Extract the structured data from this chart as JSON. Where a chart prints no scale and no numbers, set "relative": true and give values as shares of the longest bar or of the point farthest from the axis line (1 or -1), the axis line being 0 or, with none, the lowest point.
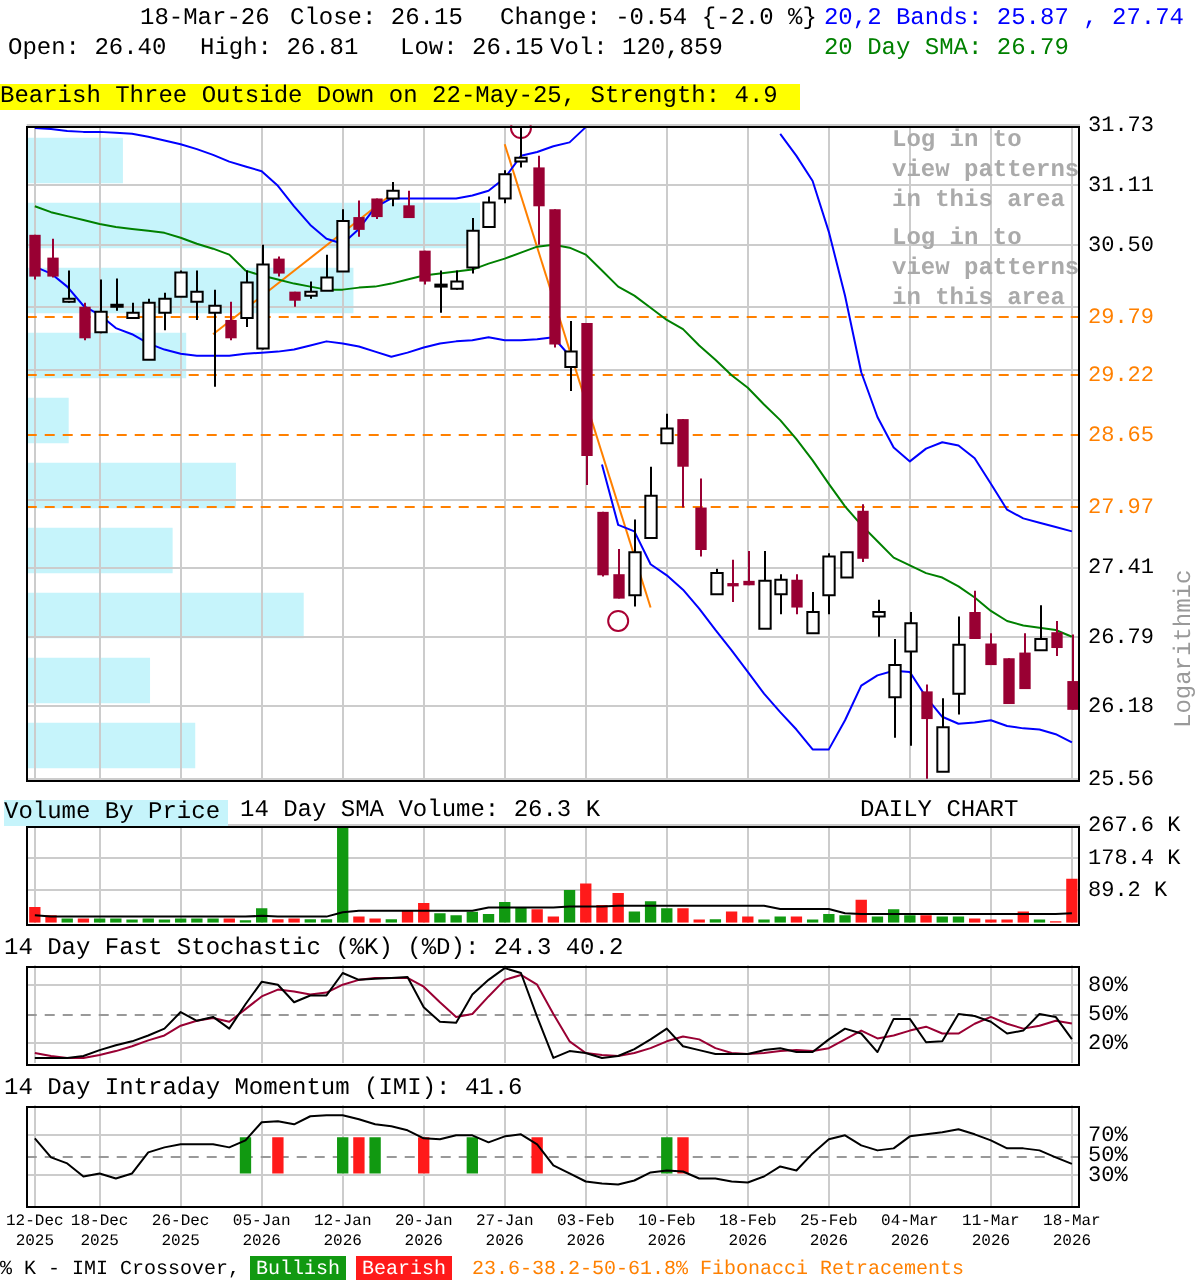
{
  "chart_data": [
    {
      "type": "candlestick",
      "title": "Bearish Three Outside Down on 22-May-25, Strength: 4.9",
      "ylabel": "Logarithmic",
      "annotations": [
        "18-Mar-26",
        "Close: 26.15",
        "Change: -0.54 {-2.0 %}",
        "Open: 26.40",
        "High: 26.81",
        "Low: 26.15",
        "Vol: 120,859",
        "DAILY CHART",
        "Log in to view patterns in this area",
        "Log in to view patterns in this area",
        "23.6-38.2-50-61.8% Fibonacci Retracements"
      ],
      "categories": [
        null,
        null,
        null,
        null,
        null,
        null,
        null,
        null,
        null,
        null,
        null,
        null,
        null,
        null,
        null,
        null,
        null,
        null,
        null,
        null,
        null,
        null,
        null,
        null,
        null,
        null,
        null,
        null,
        null,
        null,
        null,
        null,
        null,
        null,
        null,
        null,
        null,
        null,
        null,
        null,
        null,
        null,
        null,
        null,
        null,
        null,
        null,
        null,
        null,
        null,
        null,
        null,
        null,
        null,
        null,
        null,
        null,
        null,
        null,
        null,
        null,
        null,
        null,
        null,
        null
      ],
      "ohlc": [
        [
          30.6,
          30.6,
          30.15,
          30.18
        ],
        [
          30.37,
          30.56,
          30.17,
          30.18
        ],
        [
          29.93,
          30.24,
          29.92,
          29.96
        ],
        [
          29.88,
          29.92,
          29.55,
          29.57
        ],
        [
          29.63,
          30.15,
          29.62,
          29.83
        ],
        [
          29.9,
          30.16,
          29.84,
          29.9
        ],
        [
          29.77,
          29.92,
          29.77,
          29.82
        ],
        [
          29.36,
          29.96,
          29.36,
          29.92
        ],
        [
          29.82,
          30.02,
          29.65,
          29.96
        ],
        [
          29.98,
          30.24,
          29.98,
          30.22
        ],
        [
          29.93,
          30.24,
          29.75,
          30.03
        ],
        [
          29.82,
          30.05,
          29.1,
          29.89
        ],
        [
          29.75,
          29.93,
          29.55,
          29.57
        ],
        [
          29.77,
          30.24,
          29.68,
          30.12
        ],
        [
          29.47,
          30.5,
          29.46,
          30.3
        ],
        [
          30.36,
          30.38,
          30.18,
          30.21
        ],
        [
          30.03,
          30.03,
          29.88,
          29.94
        ],
        [
          29.99,
          30.13,
          29.96,
          30.03
        ],
        [
          30.04,
          30.4,
          30.04,
          30.17
        ],
        [
          30.23,
          30.86,
          30.23,
          30.74
        ],
        [
          30.78,
          30.95,
          30.58,
          30.65
        ],
        [
          30.97,
          30.97,
          30.76,
          30.78
        ],
        [
          30.97,
          31.14,
          30.89,
          31.05
        ],
        [
          30.9,
          31.05,
          30.77,
          30.77
        ],
        [
          30.44,
          30.44,
          30.1,
          30.13
        ],
        [
          30.1,
          30.24,
          29.82,
          30.1
        ],
        [
          30.06,
          30.24,
          30.05,
          30.13
        ],
        [
          30.27,
          30.77,
          30.21,
          30.64
        ],
        [
          30.68,
          30.99,
          30.68,
          30.93
        ],
        [
          30.97,
          31.26,
          30.92,
          31.22
        ],
        [
          31.35,
          31.7,
          31.29,
          31.39
        ],
        [
          31.29,
          31.41,
          30.5,
          30.89
        ],
        [
          30.86,
          30.86,
          29.48,
          29.51
        ],
        [
          29.29,
          29.74,
          29.06,
          29.44
        ],
        [
          29.72,
          29.72,
          28.17,
          28.44
        ],
        [
          27.92,
          27.92,
          27.33,
          27.34
        ],
        [
          27.35,
          27.58,
          27.13,
          27.13
        ],
        [
          27.16,
          27.85,
          27.06,
          27.55
        ],
        [
          27.68,
          28.34,
          27.68,
          28.07
        ],
        [
          28.56,
          28.84,
          28.56,
          28.7
        ],
        [
          28.79,
          28.79,
          27.96,
          28.34
        ],
        [
          27.96,
          28.23,
          27.51,
          27.57
        ],
        [
          27.17,
          27.4,
          27.17,
          27.36
        ],
        [
          27.27,
          27.48,
          27.1,
          27.24
        ],
        [
          27.29,
          27.56,
          27.25,
          27.25
        ],
        [
          26.86,
          27.56,
          26.86,
          27.29
        ],
        [
          27.17,
          27.35,
          26.99,
          27.3
        ],
        [
          27.3,
          27.35,
          26.99,
          27.05
        ],
        [
          26.82,
          27.19,
          26.82,
          27.01
        ],
        [
          27.16,
          27.54,
          26.99,
          27.51
        ],
        [
          27.32,
          27.55,
          27.32,
          27.55
        ],
        [
          27.93,
          27.99,
          27.46,
          27.49
        ],
        [
          26.97,
          27.12,
          26.79,
          27.01
        ],
        [
          26.26,
          26.77,
          25.91,
          26.54
        ],
        [
          26.66,
          27.01,
          25.84,
          26.91
        ],
        [
          26.31,
          26.37,
          25.56,
          26.07
        ],
        [
          25.62,
          26.25,
          25.62,
          26.0
        ],
        [
          26.29,
          26.97,
          26.11,
          26.72
        ],
        [
          27.01,
          27.2,
          26.77,
          26.77
        ],
        [
          26.73,
          26.82,
          26.54,
          26.54
        ],
        [
          26.6,
          26.6,
          26.2,
          26.2
        ],
        [
          26.65,
          26.82,
          26.33,
          26.33
        ],
        [
          26.67,
          27.07,
          26.67,
          26.77
        ],
        [
          26.83,
          26.93,
          26.62,
          26.69
        ],
        [
          26.4,
          26.81,
          26.15,
          26.15
        ]
      ],
      "colors": [
        "#990033",
        "#990033",
        "#ffffff",
        "#990033",
        "#ffffff",
        "#ffffff",
        "#ffffff",
        "#ffffff",
        "#ffffff",
        "#ffffff",
        "#ffffff",
        "#ffffff",
        "#990033",
        "#ffffff",
        "#ffffff",
        "#990033",
        "#990033",
        "#ffffff",
        "#ffffff",
        "#ffffff",
        "#990033",
        "#990033",
        "#ffffff",
        "#990033",
        "#990033",
        "#ffffff",
        "#ffffff",
        "#ffffff",
        "#ffffff",
        "#ffffff",
        "#ffffff",
        "#990033",
        "#990033",
        "#ffffff",
        "#990033",
        "#990033",
        "#990033",
        "#ffffff",
        "#ffffff",
        "#ffffff",
        "#990033",
        "#990033",
        "#ffffff",
        "#990033",
        "#990033",
        "#ffffff",
        "#ffffff",
        "#990033",
        "#ffffff",
        "#ffffff",
        "#ffffff",
        "#990033",
        "#ffffff",
        "#ffffff",
        "#ffffff",
        "#990033",
        "#ffffff",
        "#ffffff",
        "#990033",
        "#990033",
        "#990033",
        "#990033",
        "#ffffff",
        "#990033",
        "#990033"
      ],
      "series": [
        {
          "type": "line",
          "name": "20,2 Bands: 25.87 , 27.74",
          "color": "#0000ff",
          "values": [
            31.7,
            31.69,
            31.67,
            31.66,
            31.66,
            31.65,
            31.64,
            31.61,
            31.57,
            31.53,
            31.48,
            31.42,
            31.35,
            31.3,
            31.25,
            31.1,
            30.89,
            30.7,
            30.56,
            30.51,
            30.66,
            30.88,
            30.97,
            30.97,
            30.97,
            30.97,
            30.97,
            31.0,
            31.05,
            31.18,
            31.41,
            31.45,
            31.51,
            31.55,
            31.71,
            null,
            null,
            null,
            null,
            null,
            null,
            null,
            null,
            null,
            null,
            null,
            31.64,
            31.41,
            31.15,
            30.63,
            29.99,
            29.24,
            28.81,
            28.52,
            28.39,
            28.51,
            28.57,
            28.54,
            28.42,
            28.18,
            27.94,
            27.86,
            27.82,
            27.78,
            27.74
          ]
        },
        {
          "type": "line",
          "color": "#0000ff",
          "values": [
            30.28,
            30.21,
            30.08,
            29.89,
            29.8,
            29.67,
            29.61,
            29.52,
            29.46,
            29.42,
            29.4,
            29.4,
            29.4,
            29.42,
            29.43,
            29.44,
            29.46,
            29.5,
            29.54,
            29.52,
            29.49,
            29.44,
            29.39,
            29.43,
            29.48,
            29.52,
            29.54,
            29.55,
            29.58,
            29.55,
            29.55,
            29.56,
            29.58,
            29.4,
            null,
            28.36,
            27.8,
            27.74,
            27.44,
            27.34,
            27.21,
            27.04,
            26.85,
            26.67,
            26.48,
            26.29,
            26.13,
            25.98,
            25.81,
            25.81,
            26.06,
            26.36,
            26.45,
            26.49,
            26.48,
            26.26,
            26.09,
            26.03,
            26.04,
            26.06,
            26.01,
            25.99,
            25.98,
            25.94,
            25.87
          ]
        },
        {
          "type": "line",
          "name": "20 Day SMA: 26.79",
          "color": "#008000",
          "values": [
            30.89,
            30.83,
            30.79,
            30.75,
            30.71,
            30.68,
            30.66,
            30.64,
            30.62,
            30.57,
            30.51,
            30.46,
            30.4,
            30.24,
            30.19,
            30.15,
            30.11,
            30.08,
            30.05,
            30.05,
            30.07,
            30.08,
            30.11,
            30.15,
            30.19,
            30.21,
            30.23,
            30.25,
            30.31,
            30.36,
            30.42,
            30.48,
            30.5,
            30.47,
            30.4,
            30.24,
            30.08,
            29.99,
            29.87,
            29.75,
            29.66,
            29.5,
            29.36,
            29.21,
            29.09,
            28.93,
            28.78,
            28.6,
            28.4,
            28.18,
            27.97,
            27.8,
            27.65,
            27.5,
            27.43,
            27.36,
            27.32,
            27.24,
            27.14,
            27.02,
            26.93,
            26.89,
            26.87,
            26.85,
            26.79
          ]
        },
        {
          "type": "line",
          "color": "#ff8000",
          "values": [
            null,
            null,
            null,
            null,
            null,
            null,
            null,
            null,
            null,
            null,
            null,
            29.61,
            null,
            null,
            null,
            null,
            null,
            null,
            null,
            null,
            null,
            null,
            31.01,
            null,
            null,
            null,
            null,
            null,
            null,
            null,
            null,
            null,
            null,
            null,
            null,
            null,
            null,
            null,
            null,
            null,
            null,
            null,
            null,
            null,
            null,
            null,
            null,
            null,
            null,
            null,
            null,
            null,
            null,
            null,
            null,
            null,
            null,
            null,
            null,
            null,
            null,
            null,
            null,
            null,
            null
          ]
        },
        {
          "type": "line",
          "color": "#ff8000",
          "values": [
            null,
            null,
            null,
            null,
            null,
            null,
            null,
            null,
            null,
            null,
            null,
            null,
            null,
            null,
            null,
            null,
            null,
            null,
            null,
            null,
            null,
            null,
            null,
            null,
            null,
            null,
            null,
            null,
            null,
            31.53,
            null,
            null,
            null,
            null,
            null,
            null,
            null,
            null,
            27.05,
            null,
            null,
            null,
            null,
            null,
            null,
            null,
            null,
            null,
            null,
            null,
            null,
            null,
            null,
            null,
            null,
            null,
            null,
            null,
            null,
            null,
            null,
            null,
            null,
            null,
            null
          ]
        },
        {
          "type": "scatter",
          "marker": "circle",
          "color": "#aa0033",
          "values": [
            null,
            null,
            null,
            null,
            null,
            null,
            null,
            null,
            null,
            null,
            null,
            null,
            null,
            null,
            null,
            null,
            null,
            null,
            null,
            null,
            null,
            null,
            null,
            null,
            null,
            null,
            null,
            null,
            null,
            null,
            31.7,
            null,
            null,
            null,
            null,
            null,
            26.93,
            null,
            null,
            null,
            null,
            null,
            null,
            null,
            null,
            null,
            null,
            null,
            null,
            null,
            null,
            null,
            null,
            null,
            null,
            null,
            null,
            null,
            null,
            null,
            null,
            null,
            null,
            null,
            null
          ]
        }
      ],
      "log": true,
      "ylim": [
        25.56,
        31.73
      ],
      "yticks": [
        25.56,
        26.18,
        26.79,
        27.41,
        {
          "value": 28.03,
          "label": null
        },
        {
          "value": 28.65,
          "label": null
        },
        {
          "value": 29.26,
          "label": null
        },
        {
          "value": 29.88,
          "label": null
        },
        {
          "value": 30.5,
          "label": "30.50"
        },
        31.11,
        31.73
      ],
      "ref_lines": [
        {
          "axis": "y",
          "value": 29.79,
          "label": "29.79",
          "color": "#ff8000",
          "line_style": "dashed"
        },
        {
          "axis": "y",
          "value": 29.22,
          "label": "29.22",
          "color": "#ff8000",
          "line_style": "dashed"
        },
        {
          "axis": "y",
          "value": 28.65,
          "label": "28.65",
          "color": "#ff8000",
          "line_style": "dashed"
        },
        {
          "axis": "y",
          "value": 27.97,
          "label": "27.97",
          "color": "#ff8000",
          "line_style": "dashed"
        }
      ],
      "grid": true,
      "legend": "top right",
      "tick_labels": "y"
    },
    {
      "type": "bar",
      "title": "Volume By Price",
      "orientation": "horizontal",
      "relative": true,
      "color": "#c6f4fb",
      "categories": [
        null,
        null,
        null,
        null,
        null,
        null,
        null,
        null,
        null,
        null
      ],
      "values": [
        0.21,
        1,
        0.72,
        0.35,
        0.09,
        0.46,
        0.32,
        0.61,
        0.27,
        0.37
      ]
    },
    {
      "type": "bar",
      "title": "14 Day SMA Volume: 26.3 K",
      "categories": [
        null,
        null,
        null,
        null,
        null,
        null,
        null,
        null,
        null,
        null,
        null,
        null,
        null,
        null,
        null,
        null,
        null,
        null,
        null,
        null,
        null,
        null,
        null,
        null,
        null,
        null,
        null,
        null,
        null,
        null,
        null,
        null,
        null,
        null,
        null,
        null,
        null,
        null,
        null,
        null,
        null,
        null,
        null,
        null,
        null,
        null,
        null,
        null,
        null,
        null,
        null,
        null,
        null,
        null,
        null,
        null,
        null,
        null,
        null,
        null,
        null,
        null,
        null,
        null,
        null
      ],
      "series": [
        {
          "type": "bar",
          "values": [
            43,
            21,
            12,
            12,
            12,
            12,
            9,
            12,
            9,
            12,
            12,
            12,
            12,
            7,
            40,
            10,
            12,
            10,
            10,
            265,
            17,
            12,
            10,
            35,
            54,
            26,
            21,
            30,
            24,
            57,
            42,
            37,
            17,
            90,
            108,
            49,
            82,
            31,
            59,
            40,
            40,
            9,
            10,
            31,
            17,
            9,
            17,
            17,
            9,
            24,
            21,
            63,
            17,
            37,
            21,
            21,
            17,
            17,
            12,
            9,
            9,
            31,
            9,
            4,
            121
          ],
          "colors": [
            "#ff1a1a",
            "#ff1a1a",
            "#119911",
            "#ff1a1a",
            "#119911",
            "#119911",
            "#119911",
            "#119911",
            "#119911",
            "#119911",
            "#119911",
            "#119911",
            "#ff1a1a",
            "#119911",
            "#119911",
            "#ff1a1a",
            "#ff1a1a",
            "#119911",
            "#119911",
            "#119911",
            "#ff1a1a",
            "#ff1a1a",
            "#119911",
            "#ff1a1a",
            "#ff1a1a",
            "#119911",
            "#119911",
            "#119911",
            "#119911",
            "#119911",
            "#119911",
            "#ff1a1a",
            "#ff1a1a",
            "#119911",
            "#ff1a1a",
            "#ff1a1a",
            "#ff1a1a",
            "#119911",
            "#119911",
            "#119911",
            "#ff1a1a",
            "#ff1a1a",
            "#119911",
            "#ff1a1a",
            "#ff1a1a",
            "#119911",
            "#119911",
            "#ff1a1a",
            "#119911",
            "#119911",
            "#119911",
            "#ff1a1a",
            "#119911",
            "#119911",
            "#119911",
            "#ff1a1a",
            "#119911",
            "#119911",
            "#ff1a1a",
            "#ff1a1a",
            "#ff1a1a",
            "#ff1a1a",
            "#119911",
            "#ff1a1a",
            "#ff1a1a"
          ]
        },
        {
          "type": "line",
          "color": "#000000",
          "values": [
            21,
            17,
            17,
            17,
            17,
            17,
            17,
            17,
            17,
            17,
            17,
            17,
            17,
            17,
            19,
            17,
            17,
            17,
            17,
            29,
            33,
            33,
            33,
            33,
            33,
            33,
            33,
            33,
            42,
            42,
            42,
            42,
            42,
            45,
            45,
            45,
            47,
            47,
            47,
            47,
            47,
            47,
            47,
            47,
            47,
            47,
            38,
            38,
            38,
            38,
            26,
            24,
            24,
            24,
            24,
            24,
            24,
            24,
            24,
            24,
            24,
            24,
            24,
            24,
            26
          ]
        }
      ],
      "ylim": [
        0,
        267.6
      ],
      "yticks": [
        {
          "value": 89.2,
          "label": "89.2 K"
        },
        {
          "value": 178.4,
          "label": "178.4 K"
        },
        {
          "value": 267.6,
          "label": "267.6 K"
        }
      ],
      "grid": true,
      "tick_labels": "y"
    },
    {
      "type": "line",
      "title": "14 Day Fast Stochastic (%K) (%D): 24.3  40.2",
      "categories": [
        null,
        null,
        null,
        null,
        null,
        null,
        null,
        null,
        null,
        null,
        null,
        null,
        null,
        null,
        null,
        null,
        null,
        null,
        null,
        null,
        null,
        null,
        null,
        null,
        null,
        null,
        null,
        null,
        null,
        null,
        null,
        null,
        null,
        null,
        null,
        null,
        null,
        null,
        null,
        null,
        null,
        null,
        null,
        null,
        null,
        null,
        null,
        null,
        null,
        null,
        null,
        null,
        null,
        null,
        null,
        null,
        null,
        null,
        null,
        null,
        null,
        null,
        null,
        null,
        null
      ],
      "series": [
        {
          "color": "#000000",
          "values": [
            5,
            5,
            5,
            7,
            13,
            18,
            22,
            28,
            35,
            52,
            43,
            47,
            35,
            60,
            83,
            80,
            62,
            69,
            69,
            92,
            85,
            86,
            87,
            88,
            57,
            42,
            41,
            70,
            85,
            97,
            92,
            47,
            5,
            12,
            10,
            5,
            7,
            14,
            24,
            35,
            17,
            13,
            9,
            9,
            9,
            13,
            15,
            11,
            11,
            24,
            35,
            30,
            11,
            45,
            45,
            21,
            22,
            50,
            48,
            42,
            30,
            33,
            50,
            47,
            24.3
          ]
        },
        {
          "color": "#990033",
          "values": [
            10,
            7,
            5,
            5,
            8,
            12,
            17,
            23,
            28,
            38,
            43,
            46,
            42,
            55,
            68,
            75,
            73,
            70,
            72,
            80,
            85,
            87,
            87,
            87,
            78,
            62,
            47,
            50,
            68,
            85,
            90,
            80,
            50,
            22,
            10,
            8,
            7,
            10,
            15,
            22,
            27,
            24,
            15,
            10,
            9,
            10,
            12,
            13,
            12,
            15,
            24,
            33,
            25,
            28,
            33,
            37,
            30,
            30,
            40,
            47,
            40,
            35,
            38,
            43,
            40.2
          ]
        }
      ],
      "ylim": [
        0,
        100
      ],
      "yticks": [
        {
          "value": 20,
          "label": "20%"
        },
        {
          "value": 50,
          "label": "50%"
        },
        {
          "value": 80,
          "label": "80%"
        }
      ],
      "ref_lines": [
        {
          "axis": "y",
          "value": 50,
          "color": "#999999",
          "line_style": "dashed"
        }
      ],
      "grid": true,
      "tick_labels": "y"
    },
    {
      "type": "line",
      "title": "14 Day Intraday Momentum (IMI): 41.6",
      "legend_title": "% K - IMI Crossover,",
      "categories": [
        "12-Dec 2025",
        null,
        null,
        null,
        "18-Dec 2025",
        null,
        null,
        null,
        null,
        "26-Dec 2025",
        null,
        null,
        null,
        null,
        "05-Jan 2026",
        null,
        null,
        null,
        null,
        "12-Jan 2026",
        null,
        null,
        null,
        null,
        "20-Jan 2026",
        null,
        null,
        null,
        null,
        "27-Jan 2026",
        null,
        null,
        null,
        null,
        "03-Feb 2026",
        null,
        null,
        null,
        null,
        "10-Feb 2026",
        null,
        null,
        null,
        null,
        "18-Feb 2026",
        null,
        null,
        null,
        null,
        "25-Feb 2026",
        null,
        null,
        null,
        null,
        "04-Mar 2026",
        null,
        null,
        null,
        null,
        "11-Mar 2026",
        null,
        null,
        null,
        null,
        "18-Mar 2026"
      ],
      "series": [
        {
          "color": "#000000",
          "values": [
            67,
            48,
            42,
            29,
            32,
            27,
            32,
            53,
            58,
            61,
            61,
            61,
            58,
            65,
            83,
            84,
            81,
            89,
            90,
            90,
            86,
            81,
            79,
            75,
            67,
            66,
            70,
            70,
            63,
            69,
            71,
            61,
            40,
            32,
            24,
            22,
            21,
            25,
            33,
            35,
            34,
            27,
            27,
            24,
            23,
            29,
            39,
            35,
            52,
            66,
            70,
            60,
            55,
            57,
            69,
            71,
            73,
            76,
            71,
            65,
            57,
            57,
            55,
            48,
            41.6
          ]
        },
        {
          "type": "bar",
          "name": "Bullish",
          "color": "#119911",
          "values": [
            null,
            null,
            null,
            null,
            null,
            null,
            null,
            null,
            null,
            null,
            null,
            null,
            null,
            36,
            null,
            null,
            null,
            null,
            null,
            36,
            null,
            36,
            null,
            null,
            null,
            null,
            null,
            36,
            null,
            null,
            null,
            null,
            null,
            null,
            null,
            null,
            null,
            null,
            null,
            36,
            null,
            null,
            null,
            null,
            null,
            null,
            null,
            null,
            null,
            null,
            null,
            null,
            null,
            null,
            null,
            null,
            null,
            null,
            null,
            null,
            null,
            null,
            null,
            null,
            null
          ],
          "base": [
            null,
            null,
            null,
            null,
            null,
            null,
            null,
            null,
            null,
            null,
            null,
            null,
            null,
            32,
            null,
            null,
            null,
            null,
            null,
            32,
            null,
            32,
            null,
            null,
            null,
            null,
            null,
            32,
            null,
            null,
            null,
            null,
            null,
            null,
            null,
            null,
            null,
            null,
            null,
            32,
            null,
            null,
            null,
            null,
            null,
            null,
            null,
            null,
            null,
            null,
            null,
            null,
            null,
            null,
            null,
            null,
            null,
            null,
            null,
            null,
            null,
            null,
            null,
            null,
            null
          ]
        },
        {
          "type": "bar",
          "name": "Bearish",
          "color": "#ff1a1a",
          "values": [
            null,
            null,
            null,
            null,
            null,
            null,
            null,
            null,
            null,
            null,
            null,
            null,
            null,
            null,
            null,
            36,
            null,
            null,
            null,
            null,
            36,
            null,
            null,
            null,
            36,
            null,
            null,
            null,
            null,
            null,
            null,
            36,
            null,
            null,
            null,
            null,
            null,
            null,
            null,
            null,
            36,
            null,
            null,
            null,
            null,
            null,
            null,
            null,
            null,
            null,
            null,
            null,
            null,
            null,
            null,
            null,
            null,
            null,
            null,
            null,
            null,
            null,
            null,
            null,
            null
          ],
          "base": [
            null,
            null,
            null,
            null,
            null,
            null,
            null,
            null,
            null,
            null,
            null,
            null,
            null,
            null,
            null,
            32,
            null,
            null,
            null,
            null,
            32,
            null,
            null,
            null,
            32,
            null,
            null,
            null,
            null,
            null,
            null,
            32,
            null,
            null,
            null,
            null,
            null,
            null,
            null,
            null,
            32,
            null,
            null,
            null,
            null,
            null,
            null,
            null,
            null,
            null,
            null,
            null,
            null,
            null,
            null,
            null,
            null,
            null,
            null,
            null,
            null,
            null,
            null,
            null,
            null
          ]
        }
      ],
      "ylim": [
        0,
        100
      ],
      "yticks": [
        {
          "value": 30,
          "label": "30%"
        },
        {
          "value": 50,
          "label": "50%"
        },
        {
          "value": 70,
          "label": "70%"
        }
      ],
      "ref_lines": [
        {
          "axis": "y",
          "value": 50,
          "color": "#999999",
          "line_style": "dashed"
        }
      ],
      "grid": true,
      "legend": "bottom"
    }
  ]
}
